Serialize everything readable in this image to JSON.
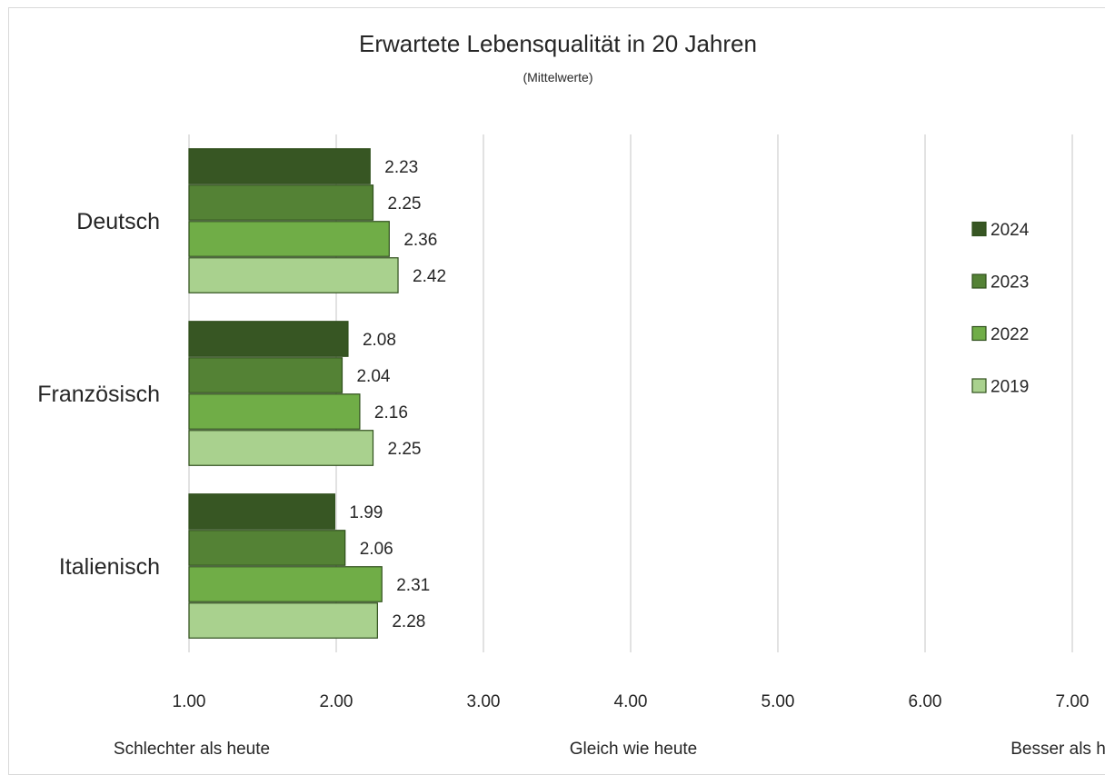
{
  "chart_data": {
    "type": "bar",
    "orientation": "horizontal",
    "title": "Erwartete Lebensqualität in 20 Jahren",
    "subtitle": "(Mittelwerte)",
    "categories": [
      "Deutsch",
      "Französisch",
      "Italienisch"
    ],
    "series": [
      {
        "name": "2024",
        "color": "#375623",
        "values": [
          2.23,
          2.08,
          1.99
        ],
        "labels": [
          "2.23",
          "2.08",
          "1.99"
        ]
      },
      {
        "name": "2023",
        "color": "#548235",
        "values": [
          2.25,
          2.04,
          2.06
        ],
        "labels": [
          "2.25",
          "2.04",
          "2.06"
        ]
      },
      {
        "name": "2022",
        "color": "#70ad47",
        "values": [
          2.36,
          2.16,
          2.31
        ],
        "labels": [
          "2.36",
          "2.16",
          "2.31"
        ]
      },
      {
        "name": "2019",
        "color": "#a9d18e",
        "values": [
          2.42,
          2.25,
          2.28
        ],
        "labels": [
          "2.42",
          "2.25",
          "2.28"
        ]
      }
    ],
    "xlim": [
      1,
      7
    ],
    "x_ticks": [
      1,
      2,
      3,
      4,
      5,
      6,
      7
    ],
    "x_tick_labels": [
      "1.00",
      "2.00",
      "3.00",
      "4.00",
      "5.00",
      "6.00",
      "7.00"
    ],
    "scale_anchors": [
      {
        "value": 1,
        "text": "Schlechter als heute"
      },
      {
        "value": 4,
        "text": "Gleich wie heute"
      },
      {
        "value": 7,
        "text": "Besser als heute"
      }
    ],
    "grid": true,
    "legend_position": "right",
    "bar_edge_color": "#2f4f1c"
  }
}
